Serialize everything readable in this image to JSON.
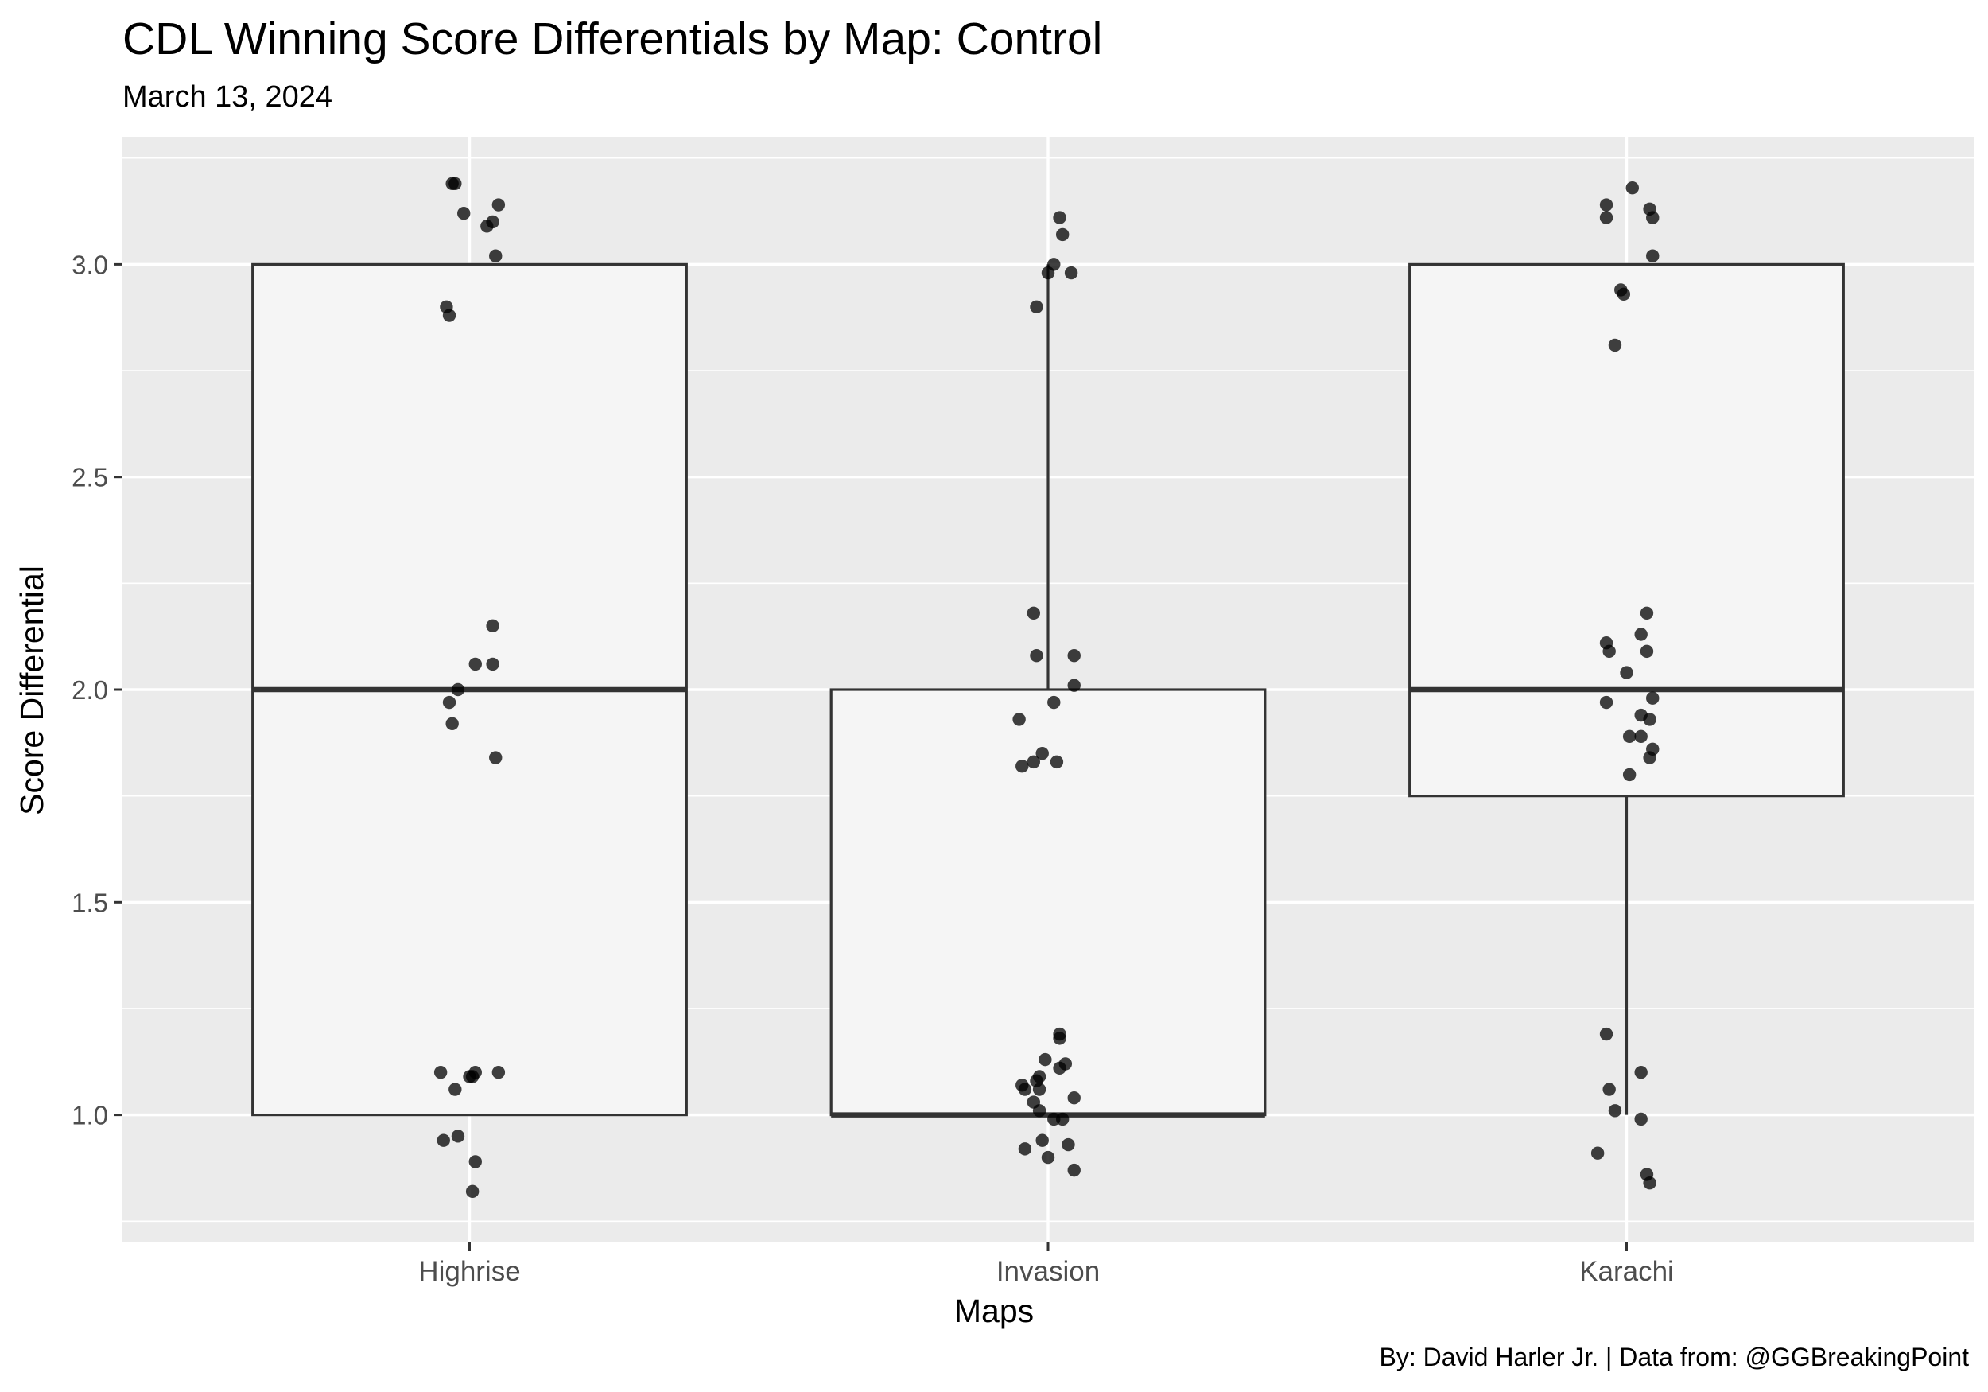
{
  "chart_data": {
    "type": "box",
    "title": "CDL Winning Score Differentials by Map: Control",
    "subtitle": "March 13, 2024",
    "caption": "By: David Harler Jr. | Data from: @GGBreakingPoint",
    "xlabel": "Maps",
    "ylabel": "Score Differential",
    "categories": [
      "Highrise",
      "Invasion",
      "Karachi"
    ],
    "ylim": [
      0.7,
      3.3
    ],
    "yticks": [
      1.0,
      1.5,
      2.0,
      2.5,
      3.0
    ],
    "ytick_labels": [
      "1.0",
      "1.5",
      "2.0",
      "2.5",
      "3.0"
    ],
    "grid": true,
    "boxes": [
      {
        "category": "Highrise",
        "q1": 1,
        "median": 2,
        "q3": 3,
        "whisker_low": 1,
        "whisker_high": 3
      },
      {
        "category": "Invasion",
        "q1": 1,
        "median": 1,
        "q3": 2,
        "whisker_low": 1,
        "whisker_high": 3
      },
      {
        "category": "Karachi",
        "q1": 1.75,
        "median": 2,
        "q3": 3,
        "whisker_low": 1,
        "whisker_high": 3
      }
    ],
    "points": [
      {
        "category": "Highrise",
        "values": [
          3.19,
          3.19,
          3.12,
          3.14,
          3.09,
          3.1,
          3.02,
          2.9,
          2.88,
          2.15,
          2.06,
          2.06,
          2.0,
          1.97,
          1.92,
          1.84,
          1.1,
          1.1,
          1.09,
          1.09,
          1.1,
          1.06,
          0.95,
          0.94,
          0.89,
          0.82
        ],
        "jitter": [
          -0.03,
          -0.025,
          -0.01,
          0.05,
          0.03,
          0.04,
          0.045,
          -0.04,
          -0.035,
          0.04,
          0.01,
          0.04,
          -0.02,
          -0.035,
          -0.03,
          0.045,
          -0.05,
          0.01,
          0.0,
          0.005,
          0.05,
          -0.025,
          -0.02,
          -0.045,
          0.01,
          0.005
        ]
      },
      {
        "category": "Invasion",
        "values": [
          3.11,
          3.07,
          3.0,
          2.98,
          2.98,
          2.9,
          2.18,
          2.08,
          2.08,
          2.01,
          1.97,
          1.93,
          1.85,
          1.83,
          1.83,
          1.82,
          1.19,
          1.18,
          1.13,
          1.12,
          1.11,
          1.09,
          1.08,
          1.07,
          1.06,
          1.06,
          1.04,
          1.03,
          1.01,
          0.99,
          0.99,
          0.94,
          0.93,
          0.92,
          0.9,
          0.87
        ],
        "jitter": [
          0.02,
          0.025,
          0.01,
          0.0,
          0.04,
          -0.02,
          -0.025,
          -0.02,
          0.045,
          0.045,
          0.01,
          -0.05,
          -0.01,
          -0.025,
          0.015,
          -0.045,
          0.02,
          0.02,
          -0.005,
          0.03,
          0.02,
          -0.015,
          -0.02,
          -0.045,
          -0.04,
          -0.015,
          0.045,
          -0.025,
          -0.015,
          0.01,
          0.025,
          -0.01,
          0.035,
          -0.04,
          0.0,
          0.045
        ]
      },
      {
        "category": "Karachi",
        "values": [
          3.18,
          3.14,
          3.13,
          3.11,
          3.11,
          3.02,
          2.94,
          2.93,
          2.81,
          2.18,
          2.13,
          2.11,
          2.09,
          2.09,
          2.04,
          1.98,
          1.97,
          1.94,
          1.93,
          1.89,
          1.89,
          1.86,
          1.84,
          1.8,
          1.19,
          1.1,
          1.06,
          1.01,
          0.99,
          0.91,
          0.86,
          0.84
        ],
        "jitter": [
          0.01,
          -0.035,
          0.04,
          -0.035,
          0.045,
          0.045,
          -0.01,
          -0.005,
          -0.02,
          0.035,
          0.025,
          -0.035,
          -0.03,
          0.035,
          0.0,
          0.045,
          -0.035,
          0.025,
          0.04,
          0.005,
          0.025,
          0.045,
          0.04,
          0.005,
          -0.035,
          0.025,
          -0.03,
          -0.02,
          0.025,
          -0.05,
          0.035,
          0.04
        ]
      }
    ],
    "colors": {
      "panel_background": "#EBEBEB",
      "grid": "#FFFFFF",
      "box_fill": "#F5F5F5",
      "box_line": "#333333",
      "point": "#000000",
      "axis_text": "#4D4D4D",
      "tick": "#333333"
    }
  }
}
